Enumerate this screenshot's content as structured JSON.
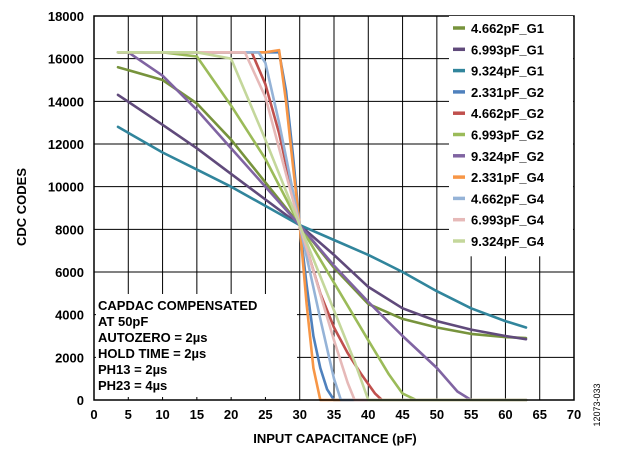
{
  "chart_data": {
    "type": "line",
    "xlabel": "INPUT CAPACITANCE (pF)",
    "ylabel": "CDC CODES",
    "xlim": [
      0,
      70
    ],
    "ylim": [
      0,
      18000
    ],
    "x_ticks": [
      0,
      5,
      10,
      15,
      20,
      25,
      30,
      35,
      40,
      45,
      50,
      55,
      60,
      65,
      70
    ],
    "y_ticks": [
      0,
      2000,
      4000,
      6000,
      8000,
      10000,
      12000,
      14000,
      16000,
      18000
    ],
    "grid": true,
    "legend_position": "top-right",
    "annotation": [
      "CAPDAC COMPENSATED",
      " AT 50pF",
      "AUTOZERO = 2µs",
      "HOLD TIME = 2µs",
      "PH13 = 2µs",
      "PH23 = 4µs"
    ],
    "figure_id": "12073-033",
    "series": [
      {
        "name": "4.662pF_G1",
        "color": "#77933C",
        "x": [
          3.5,
          10,
          15,
          20,
          25,
          30,
          35,
          40,
          45,
          50,
          55,
          60,
          63
        ],
        "y": [
          15600,
          15000,
          13900,
          12200,
          10200,
          8200,
          6200,
          4500,
          3800,
          3400,
          3100,
          2950,
          2900
        ]
      },
      {
        "name": "6.993pF_G1",
        "color": "#604A7B",
        "x": [
          3.5,
          10,
          15,
          20,
          25,
          30,
          35,
          40,
          45,
          50,
          55,
          60,
          63
        ],
        "y": [
          14300,
          12900,
          11800,
          10600,
          9400,
          8200,
          6800,
          5300,
          4300,
          3700,
          3300,
          3000,
          2850
        ]
      },
      {
        "name": "9.324pF_G1",
        "color": "#31859C",
        "x": [
          3.5,
          10,
          15,
          20,
          25,
          30,
          35,
          40,
          45,
          50,
          55,
          60,
          63
        ],
        "y": [
          12800,
          11600,
          10800,
          10000,
          9100,
          8200,
          7500,
          6800,
          6000,
          5100,
          4300,
          3700,
          3400
        ]
      },
      {
        "name": "2.331pF_G2",
        "color": "#4F81BD",
        "x": [
          3.5,
          15,
          20,
          23,
          25,
          27,
          28,
          29,
          30,
          31,
          32,
          33,
          34,
          35,
          36,
          63
        ],
        "y": [
          16300,
          16300,
          16300,
          16300,
          16300,
          16300,
          14500,
          11500,
          8200,
          5400,
          3000,
          1500,
          500,
          0,
          0,
          0
        ]
      },
      {
        "name": "4.662pF_G2",
        "color": "#C0504D",
        "x": [
          3.5,
          15,
          20,
          23,
          25,
          27,
          30,
          33,
          35,
          37,
          39,
          41,
          42,
          63
        ],
        "y": [
          16300,
          16300,
          16300,
          16300,
          14800,
          12500,
          8200,
          5000,
          3400,
          2200,
          1200,
          300,
          0,
          0
        ]
      },
      {
        "name": "6.993pF_G2",
        "color": "#9BBB59",
        "x": [
          3.5,
          10,
          15,
          20,
          25,
          30,
          35,
          40,
          43,
          45,
          47,
          63
        ],
        "y": [
          16300,
          16300,
          16100,
          13800,
          11300,
          8200,
          5500,
          2800,
          1200,
          300,
          0,
          0
        ]
      },
      {
        "name": "9.324pF_G2",
        "color": "#8064A2",
        "x": [
          3.5,
          5,
          10,
          15,
          20,
          25,
          30,
          35,
          40,
          45,
          50,
          53,
          55,
          63
        ],
        "y": [
          16300,
          16300,
          15200,
          13600,
          11800,
          10000,
          8200,
          6300,
          4600,
          3000,
          1500,
          400,
          0,
          0
        ]
      },
      {
        "name": "2.331pF_G4",
        "color": "#F79646",
        "x": [
          3.5,
          10,
          15,
          20,
          25,
          27,
          28,
          29,
          30,
          31,
          32,
          33,
          63
        ],
        "y": [
          16300,
          16300,
          16300,
          16300,
          16300,
          16400,
          14000,
          11000,
          8200,
          4500,
          1500,
          0,
          0
        ]
      },
      {
        "name": "4.662pF_G4",
        "color": "#95B3D7",
        "x": [
          3.5,
          10,
          15,
          20,
          24,
          25,
          27,
          30,
          33,
          35,
          36,
          63
        ],
        "y": [
          16300,
          16300,
          16300,
          16300,
          16300,
          15800,
          13000,
          8200,
          3800,
          1000,
          0,
          0
        ]
      },
      {
        "name": "6.993pF_G4",
        "color": "#E6B9B8",
        "x": [
          3.5,
          10,
          15,
          20,
          22,
          25,
          30,
          35,
          37,
          38,
          63
        ],
        "y": [
          16300,
          16300,
          16300,
          16300,
          16300,
          14200,
          8200,
          2800,
          800,
          0,
          0
        ]
      },
      {
        "name": "9.324pF_G4",
        "color": "#C4D79B",
        "x": [
          3.5,
          10,
          15,
          20,
          25,
          30,
          35,
          38,
          40,
          63
        ],
        "y": [
          16300,
          16300,
          16300,
          16000,
          12200,
          8200,
          4200,
          1800,
          0,
          0
        ]
      }
    ]
  }
}
